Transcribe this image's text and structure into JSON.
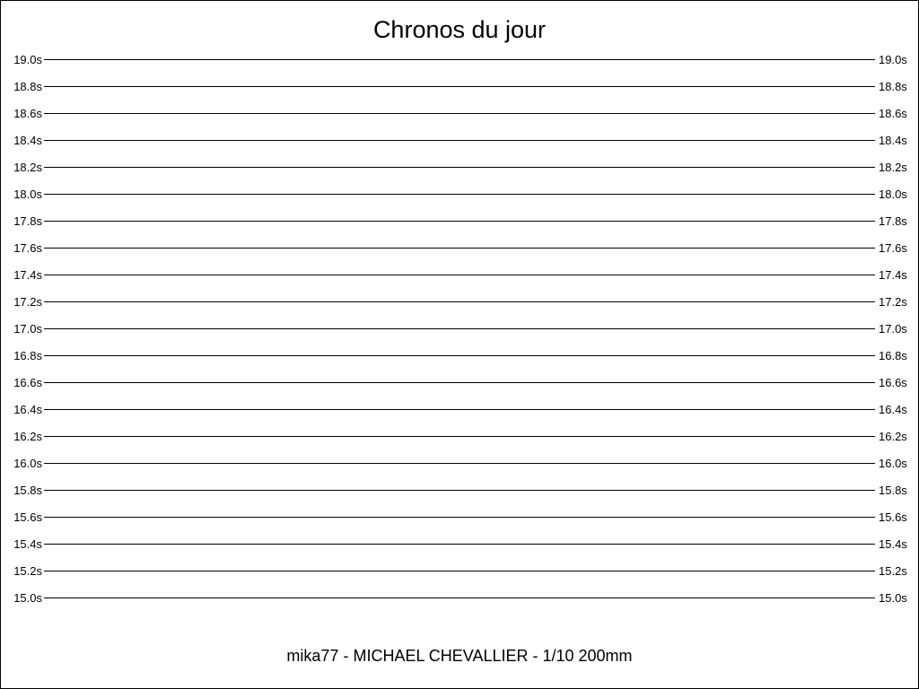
{
  "chart_data": {
    "type": "line",
    "title": "Chronos du jour",
    "footer": "mika77 - MICHAEL CHEVALLIER - 1/10 200mm",
    "ylim": [
      15.0,
      19.0
    ],
    "ytick_step": 0.2,
    "ytick_suffix": "s",
    "grid": true,
    "series": []
  }
}
